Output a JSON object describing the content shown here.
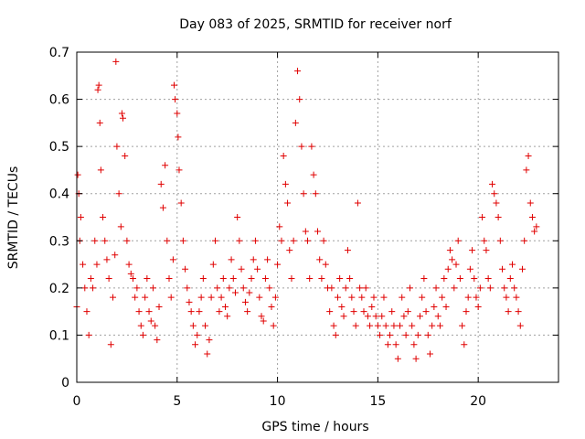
{
  "colors": {
    "series": "#e00000",
    "grid": "#a0a0a0",
    "axis": "#000000",
    "background": "#ffffff"
  },
  "chart_data": {
    "type": "scatter",
    "title": "Day 083 of 2025, SRMTID for receiver norf",
    "xlabel": "GPS time / hours",
    "ylabel": "SRMTID / TECUs",
    "xlim": [
      0,
      24
    ],
    "ylim": [
      0,
      0.7
    ],
    "grid": true,
    "xticks": [
      0,
      5,
      10,
      15,
      20
    ],
    "xtick_labels": [
      "0",
      "5",
      "10",
      "15",
      "20"
    ],
    "yticks": [
      0,
      0.1,
      0.2,
      0.3,
      0.4,
      0.5,
      0.6,
      0.7
    ],
    "ytick_labels": [
      "0",
      "0.1",
      "0.2",
      "0.3",
      "0.4",
      "0.5",
      "0.6",
      "0.7"
    ],
    "marker": "+",
    "series": [
      {
        "name": "SRMTID",
        "points": [
          [
            0.0,
            0.16
          ],
          [
            0.05,
            0.44
          ],
          [
            0.1,
            0.4
          ],
          [
            0.15,
            0.3
          ],
          [
            0.2,
            0.35
          ],
          [
            0.3,
            0.25
          ],
          [
            0.4,
            0.2
          ],
          [
            0.5,
            0.15
          ],
          [
            0.6,
            0.1
          ],
          [
            0.7,
            0.22
          ],
          [
            0.8,
            0.2
          ],
          [
            0.9,
            0.3
          ],
          [
            1.0,
            0.25
          ],
          [
            1.05,
            0.62
          ],
          [
            1.1,
            0.63
          ],
          [
            1.15,
            0.55
          ],
          [
            1.2,
            0.45
          ],
          [
            1.3,
            0.35
          ],
          [
            1.4,
            0.3
          ],
          [
            1.5,
            0.26
          ],
          [
            1.6,
            0.22
          ],
          [
            1.7,
            0.08
          ],
          [
            1.8,
            0.18
          ],
          [
            1.9,
            0.27
          ],
          [
            1.95,
            0.68
          ],
          [
            2.0,
            0.5
          ],
          [
            2.1,
            0.4
          ],
          [
            2.2,
            0.33
          ],
          [
            2.25,
            0.57
          ],
          [
            2.3,
            0.56
          ],
          [
            2.4,
            0.48
          ],
          [
            2.5,
            0.3
          ],
          [
            2.6,
            0.25
          ],
          [
            2.7,
            0.23
          ],
          [
            2.8,
            0.22
          ],
          [
            2.9,
            0.18
          ],
          [
            3.0,
            0.2
          ],
          [
            3.1,
            0.15
          ],
          [
            3.2,
            0.12
          ],
          [
            3.3,
            0.1
          ],
          [
            3.4,
            0.18
          ],
          [
            3.5,
            0.22
          ],
          [
            3.6,
            0.15
          ],
          [
            3.7,
            0.13
          ],
          [
            3.8,
            0.2
          ],
          [
            3.9,
            0.12
          ],
          [
            4.0,
            0.09
          ],
          [
            4.1,
            0.16
          ],
          [
            4.2,
            0.42
          ],
          [
            4.3,
            0.37
          ],
          [
            4.4,
            0.46
          ],
          [
            4.5,
            0.3
          ],
          [
            4.6,
            0.22
          ],
          [
            4.7,
            0.18
          ],
          [
            4.8,
            0.26
          ],
          [
            4.85,
            0.63
          ],
          [
            4.9,
            0.6
          ],
          [
            5.0,
            0.57
          ],
          [
            5.05,
            0.52
          ],
          [
            5.1,
            0.45
          ],
          [
            5.2,
            0.38
          ],
          [
            5.3,
            0.3
          ],
          [
            5.4,
            0.24
          ],
          [
            5.5,
            0.2
          ],
          [
            5.6,
            0.17
          ],
          [
            5.7,
            0.15
          ],
          [
            5.8,
            0.12
          ],
          [
            5.9,
            0.08
          ],
          [
            6.0,
            0.1
          ],
          [
            6.1,
            0.15
          ],
          [
            6.2,
            0.18
          ],
          [
            6.3,
            0.22
          ],
          [
            6.4,
            0.12
          ],
          [
            6.5,
            0.06
          ],
          [
            6.6,
            0.09
          ],
          [
            6.7,
            0.18
          ],
          [
            6.8,
            0.25
          ],
          [
            6.9,
            0.3
          ],
          [
            7.0,
            0.2
          ],
          [
            7.1,
            0.15
          ],
          [
            7.2,
            0.18
          ],
          [
            7.3,
            0.22
          ],
          [
            7.4,
            0.16
          ],
          [
            7.5,
            0.14
          ],
          [
            7.6,
            0.2
          ],
          [
            7.7,
            0.26
          ],
          [
            7.8,
            0.22
          ],
          [
            7.9,
            0.19
          ],
          [
            8.0,
            0.35
          ],
          [
            8.1,
            0.3
          ],
          [
            8.2,
            0.24
          ],
          [
            8.3,
            0.2
          ],
          [
            8.4,
            0.17
          ],
          [
            8.5,
            0.15
          ],
          [
            8.6,
            0.19
          ],
          [
            8.7,
            0.22
          ],
          [
            8.8,
            0.26
          ],
          [
            8.9,
            0.3
          ],
          [
            9.0,
            0.24
          ],
          [
            9.1,
            0.18
          ],
          [
            9.2,
            0.14
          ],
          [
            9.3,
            0.13
          ],
          [
            9.4,
            0.22
          ],
          [
            9.5,
            0.26
          ],
          [
            9.6,
            0.2
          ],
          [
            9.7,
            0.16
          ],
          [
            9.8,
            0.12
          ],
          [
            9.9,
            0.18
          ],
          [
            10.0,
            0.25
          ],
          [
            10.1,
            0.33
          ],
          [
            10.2,
            0.3
          ],
          [
            10.3,
            0.48
          ],
          [
            10.4,
            0.42
          ],
          [
            10.5,
            0.38
          ],
          [
            10.6,
            0.28
          ],
          [
            10.7,
            0.22
          ],
          [
            10.8,
            0.3
          ],
          [
            10.9,
            0.55
          ],
          [
            11.0,
            0.66
          ],
          [
            11.1,
            0.6
          ],
          [
            11.2,
            0.5
          ],
          [
            11.3,
            0.4
          ],
          [
            11.4,
            0.32
          ],
          [
            11.5,
            0.3
          ],
          [
            11.6,
            0.22
          ],
          [
            11.7,
            0.5
          ],
          [
            11.8,
            0.44
          ],
          [
            11.9,
            0.4
          ],
          [
            12.0,
            0.32
          ],
          [
            12.1,
            0.26
          ],
          [
            12.2,
            0.22
          ],
          [
            12.3,
            0.3
          ],
          [
            12.4,
            0.25
          ],
          [
            12.5,
            0.2
          ],
          [
            12.6,
            0.15
          ],
          [
            12.7,
            0.2
          ],
          [
            12.8,
            0.12
          ],
          [
            12.9,
            0.1
          ],
          [
            13.0,
            0.18
          ],
          [
            13.1,
            0.22
          ],
          [
            13.2,
            0.16
          ],
          [
            13.3,
            0.14
          ],
          [
            13.4,
            0.2
          ],
          [
            13.5,
            0.28
          ],
          [
            13.6,
            0.22
          ],
          [
            13.7,
            0.18
          ],
          [
            13.8,
            0.15
          ],
          [
            13.9,
            0.12
          ],
          [
            14.0,
            0.38
          ],
          [
            14.1,
            0.2
          ],
          [
            14.2,
            0.18
          ],
          [
            14.3,
            0.15
          ],
          [
            14.4,
            0.2
          ],
          [
            14.5,
            0.14
          ],
          [
            14.6,
            0.12
          ],
          [
            14.7,
            0.16
          ],
          [
            14.8,
            0.18
          ],
          [
            14.9,
            0.14
          ],
          [
            15.0,
            0.12
          ],
          [
            15.1,
            0.1
          ],
          [
            15.2,
            0.14
          ],
          [
            15.3,
            0.18
          ],
          [
            15.4,
            0.12
          ],
          [
            15.5,
            0.08
          ],
          [
            15.6,
            0.1
          ],
          [
            15.7,
            0.15
          ],
          [
            15.8,
            0.12
          ],
          [
            15.9,
            0.08
          ],
          [
            16.0,
            0.05
          ],
          [
            16.1,
            0.12
          ],
          [
            16.2,
            0.18
          ],
          [
            16.3,
            0.14
          ],
          [
            16.4,
            0.1
          ],
          [
            16.5,
            0.15
          ],
          [
            16.6,
            0.2
          ],
          [
            16.7,
            0.12
          ],
          [
            16.8,
            0.08
          ],
          [
            16.9,
            0.05
          ],
          [
            17.0,
            0.1
          ],
          [
            17.1,
            0.14
          ],
          [
            17.2,
            0.18
          ],
          [
            17.3,
            0.22
          ],
          [
            17.4,
            0.15
          ],
          [
            17.5,
            0.1
          ],
          [
            17.6,
            0.06
          ],
          [
            17.7,
            0.12
          ],
          [
            17.8,
            0.16
          ],
          [
            17.9,
            0.2
          ],
          [
            18.0,
            0.14
          ],
          [
            18.1,
            0.12
          ],
          [
            18.2,
            0.18
          ],
          [
            18.3,
            0.22
          ],
          [
            18.4,
            0.16
          ],
          [
            18.5,
            0.24
          ],
          [
            18.6,
            0.28
          ],
          [
            18.7,
            0.26
          ],
          [
            18.8,
            0.2
          ],
          [
            18.9,
            0.25
          ],
          [
            19.0,
            0.3
          ],
          [
            19.1,
            0.22
          ],
          [
            19.2,
            0.12
          ],
          [
            19.3,
            0.08
          ],
          [
            19.4,
            0.15
          ],
          [
            19.5,
            0.18
          ],
          [
            19.6,
            0.24
          ],
          [
            19.7,
            0.28
          ],
          [
            19.8,
            0.22
          ],
          [
            19.9,
            0.18
          ],
          [
            20.0,
            0.16
          ],
          [
            20.1,
            0.2
          ],
          [
            20.2,
            0.35
          ],
          [
            20.3,
            0.3
          ],
          [
            20.4,
            0.28
          ],
          [
            20.5,
            0.22
          ],
          [
            20.6,
            0.2
          ],
          [
            20.7,
            0.42
          ],
          [
            20.8,
            0.4
          ],
          [
            20.9,
            0.38
          ],
          [
            21.0,
            0.35
          ],
          [
            21.1,
            0.3
          ],
          [
            21.2,
            0.24
          ],
          [
            21.3,
            0.2
          ],
          [
            21.4,
            0.18
          ],
          [
            21.5,
            0.15
          ],
          [
            21.6,
            0.22
          ],
          [
            21.7,
            0.25
          ],
          [
            21.8,
            0.2
          ],
          [
            21.9,
            0.18
          ],
          [
            22.0,
            0.15
          ],
          [
            22.1,
            0.12
          ],
          [
            22.2,
            0.24
          ],
          [
            22.3,
            0.3
          ],
          [
            22.4,
            0.45
          ],
          [
            22.5,
            0.48
          ],
          [
            22.6,
            0.38
          ],
          [
            22.7,
            0.35
          ],
          [
            22.8,
            0.32
          ],
          [
            22.9,
            0.33
          ]
        ]
      }
    ]
  }
}
